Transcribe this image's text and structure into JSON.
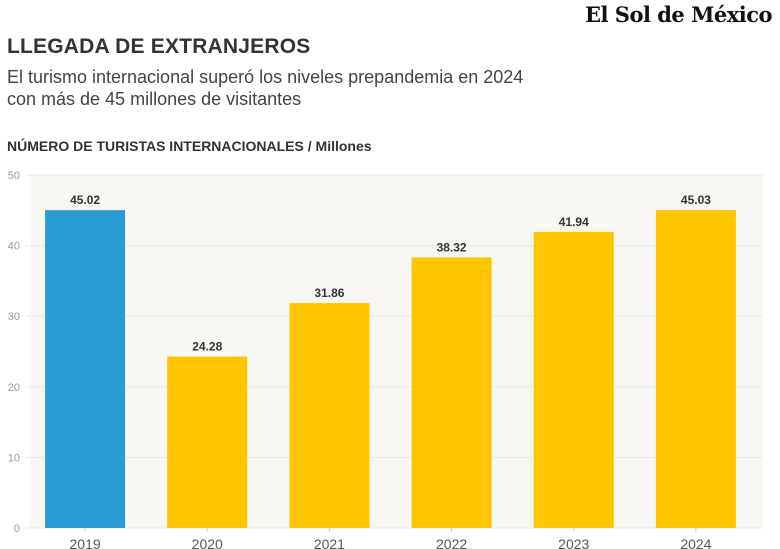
{
  "brand": {
    "logo_text": "El Sol de México"
  },
  "header": {
    "title": "LLEGADA DE EXTRANJEROS",
    "subtitle_line1": "El turismo internacional superó los niveles prepandemia en 2024",
    "subtitle_line2": "con más de 45 millones de visitantes"
  },
  "chart_data": {
    "type": "bar",
    "title": "LLEGADA DE EXTRANJEROS",
    "subtitle": "El turismo internacional superó los niveles prepandemia en 2024 con más de 45 millones de visitantes",
    "ylabel": "NÚMERO DE TURISTAS INTERNACIONALES / Millones",
    "xlabel": "",
    "categories": [
      "2019",
      "2020",
      "2021",
      "2022",
      "2023",
      "2024"
    ],
    "values": [
      45.02,
      24.28,
      31.86,
      38.32,
      41.94,
      45.03
    ],
    "value_labels": [
      "45.02",
      "24.28",
      "31.86",
      "38.32",
      "41.94",
      "45.03"
    ],
    "ylim": [
      0,
      50
    ],
    "yticks": [
      0,
      10,
      20,
      30,
      40,
      50
    ],
    "grid": true,
    "legend": "none",
    "colors": {
      "highlight": "#2b9bd6",
      "default": "#ffc600",
      "plot_background": "#f8f7f4",
      "gridline": "#e8e8e8"
    },
    "bar_colors": [
      "#2b9bd6",
      "#ffc600",
      "#ffc600",
      "#ffc600",
      "#ffc600",
      "#ffc600"
    ]
  }
}
